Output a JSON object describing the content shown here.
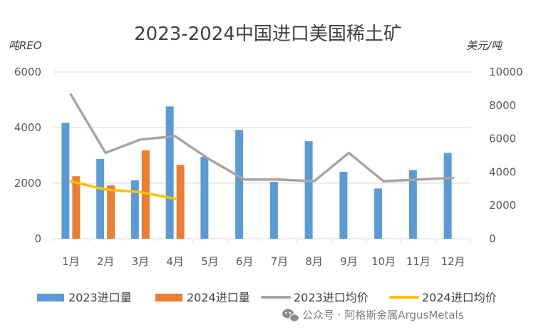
{
  "chart_data": {
    "type": "bar",
    "title": "2023-2024中国进口美国稀土矿",
    "left_axis_unit": "吨REO",
    "right_axis_unit": "美元/吨",
    "categories": [
      "1月",
      "2月",
      "3月",
      "4月",
      "5月",
      "6月",
      "7月",
      "8月",
      "9月",
      "10月",
      "11月",
      "12月"
    ],
    "y_left": {
      "min": 0,
      "max": 6000,
      "ticks": [
        "0",
        "2000",
        "4000",
        "6000"
      ]
    },
    "y_right": {
      "min": 0,
      "max": 10000,
      "ticks": [
        "0",
        "2000",
        "4000",
        "6000",
        "8000",
        "10000"
      ]
    },
    "series": [
      {
        "name": "2023进口量",
        "type": "bar",
        "axis": "left",
        "color": "#5b9bd5",
        "values": [
          4170,
          2870,
          2100,
          4760,
          2950,
          3920,
          2050,
          3510,
          2410,
          1810,
          2470,
          3090
        ]
      },
      {
        "name": "2024进口量",
        "type": "bar",
        "axis": "left",
        "color": "#ed7d31",
        "values": [
          2250,
          1920,
          3180,
          2660,
          null,
          null,
          null,
          null,
          null,
          null,
          null,
          null
        ]
      },
      {
        "name": "2023进口均价",
        "type": "line",
        "axis": "right",
        "color": "#a5a5a5",
        "values": [
          8650,
          5150,
          5950,
          6150,
          4750,
          3550,
          3550,
          3450,
          5150,
          3450,
          3550,
          3650
        ]
      },
      {
        "name": "2024进口均价",
        "type": "line",
        "axis": "right",
        "color": "#ffc000",
        "values": [
          3450,
          2950,
          2800,
          2400,
          null,
          null,
          null,
          null,
          null,
          null,
          null,
          null
        ]
      }
    ],
    "grid": true,
    "legend_position": "bottom"
  },
  "watermark": {
    "icon": "wechat-icon",
    "text": "公众号 · 阿格斯金属ArgusMetals"
  }
}
